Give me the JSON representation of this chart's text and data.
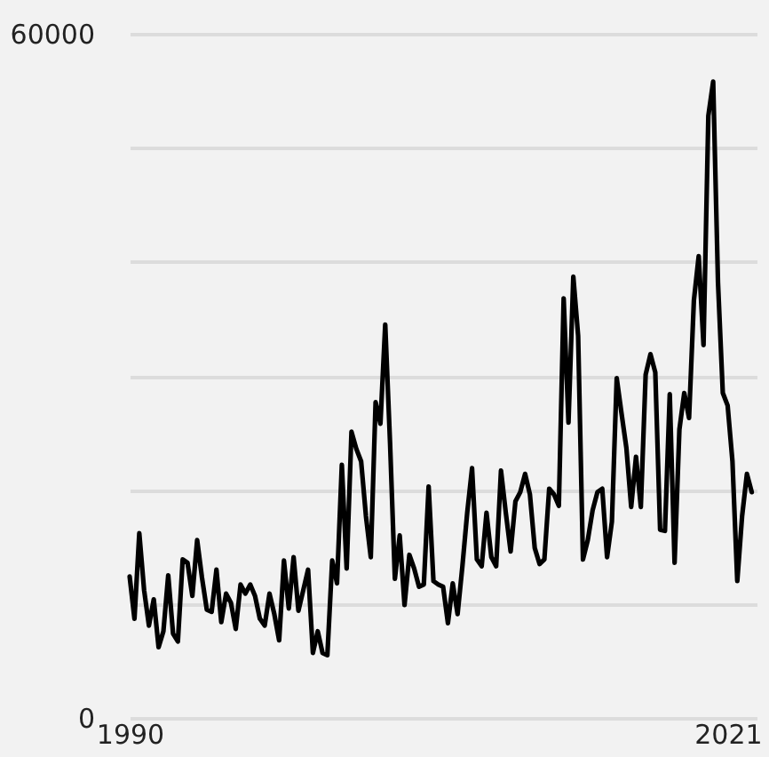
{
  "chart_data": {
    "type": "line",
    "x": [
      1990,
      1990.25,
      1990.5,
      1990.75,
      1991,
      1991.25,
      1991.5,
      1991.75,
      1992,
      1992.25,
      1992.5,
      1992.75,
      1993,
      1993.25,
      1993.5,
      1993.75,
      1994,
      1994.25,
      1994.5,
      1994.75,
      1995,
      1995.25,
      1995.5,
      1995.75,
      1996,
      1996.25,
      1996.5,
      1996.75,
      1997,
      1997.25,
      1997.5,
      1997.75,
      1998,
      1998.25,
      1998.5,
      1998.75,
      1999,
      1999.25,
      1999.5,
      1999.75,
      2000,
      2000.25,
      2000.5,
      2000.75,
      2001,
      2001.25,
      2001.5,
      2001.75,
      2002,
      2002.25,
      2002.5,
      2002.75,
      2003,
      2003.25,
      2003.5,
      2003.75,
      2004,
      2004.25,
      2004.5,
      2004.75,
      2005,
      2005.25,
      2005.5,
      2005.75,
      2006,
      2006.25,
      2006.5,
      2006.75,
      2007,
      2007.25,
      2007.5,
      2007.75,
      2008,
      2008.25,
      2008.5,
      2008.75,
      2009,
      2009.25,
      2009.5,
      2009.75,
      2010,
      2010.25,
      2010.5,
      2010.75,
      2011,
      2011.25,
      2011.5,
      2011.75,
      2012,
      2012.25,
      2012.5,
      2012.75,
      2013,
      2013.25,
      2013.5,
      2013.75,
      2014,
      2014.25,
      2014.5,
      2014.75,
      2015,
      2015.25,
      2015.5,
      2015.75,
      2016,
      2016.25,
      2016.5,
      2016.75,
      2017,
      2017.25,
      2017.5,
      2017.75,
      2018,
      2018.25,
      2018.5,
      2018.75,
      2019,
      2019.25,
      2019.5,
      2019.75,
      2020,
      2020.25,
      2020.5,
      2020.75,
      2021,
      2021.25,
      2021.5,
      2021.75,
      2022,
      2022.25
    ],
    "series": [
      {
        "color": "#000000",
        "values": [
          12400,
          8700,
          16200,
          11200,
          8100,
          10400,
          6200,
          7600,
          12500,
          7400,
          6700,
          13900,
          13600,
          10700,
          15600,
          12300,
          9500,
          9300,
          13000,
          8400,
          10900,
          10100,
          7800,
          11700,
          10900,
          11700,
          10700,
          8700,
          8100,
          10900,
          9100,
          6800,
          13800,
          9600,
          14100,
          9400,
          11200,
          13000,
          5700,
          7600,
          5700,
          5500,
          13800,
          11800,
          22200,
          13100,
          25100,
          23600,
          22500,
          17700,
          14100,
          27700,
          25800,
          34500,
          24100,
          12200,
          16000,
          9900,
          14300,
          13100,
          11500,
          11700,
          20300,
          12000,
          11700,
          11500,
          8300,
          11800,
          9100,
          13300,
          18000,
          21900,
          13900,
          13300,
          18000,
          14100,
          13300,
          21700,
          18000,
          14600,
          19000,
          19800,
          21400,
          19600,
          14900,
          13500,
          13900,
          20100,
          19600,
          18600,
          36800,
          25900,
          38700,
          33500,
          13900,
          15600,
          18200,
          19800,
          20100,
          14100,
          17200,
          29800,
          26700,
          23700,
          18500,
          22900,
          18500,
          30100,
          31900,
          30300,
          16500,
          16400,
          28400,
          13600,
          25300,
          28500,
          26300,
          36600,
          40500,
          32700,
          52800,
          55800,
          38200,
          28500,
          27400,
          22500,
          12000,
          17700,
          21400,
          19800
        ]
      }
    ],
    "xlim": [
      1990,
      2022.5
    ],
    "xticks": [
      1990,
      2021
    ],
    "ylim": [
      0,
      60000
    ],
    "yticks": [
      0,
      {
        "value": 10000,
        "label": null
      },
      {
        "value": 20000,
        "label": null
      },
      {
        "value": 30000,
        "label": null
      },
      {
        "value": 40000,
        "label": null
      },
      {
        "value": 50000,
        "label": null
      },
      60000
    ],
    "grid": "y"
  }
}
